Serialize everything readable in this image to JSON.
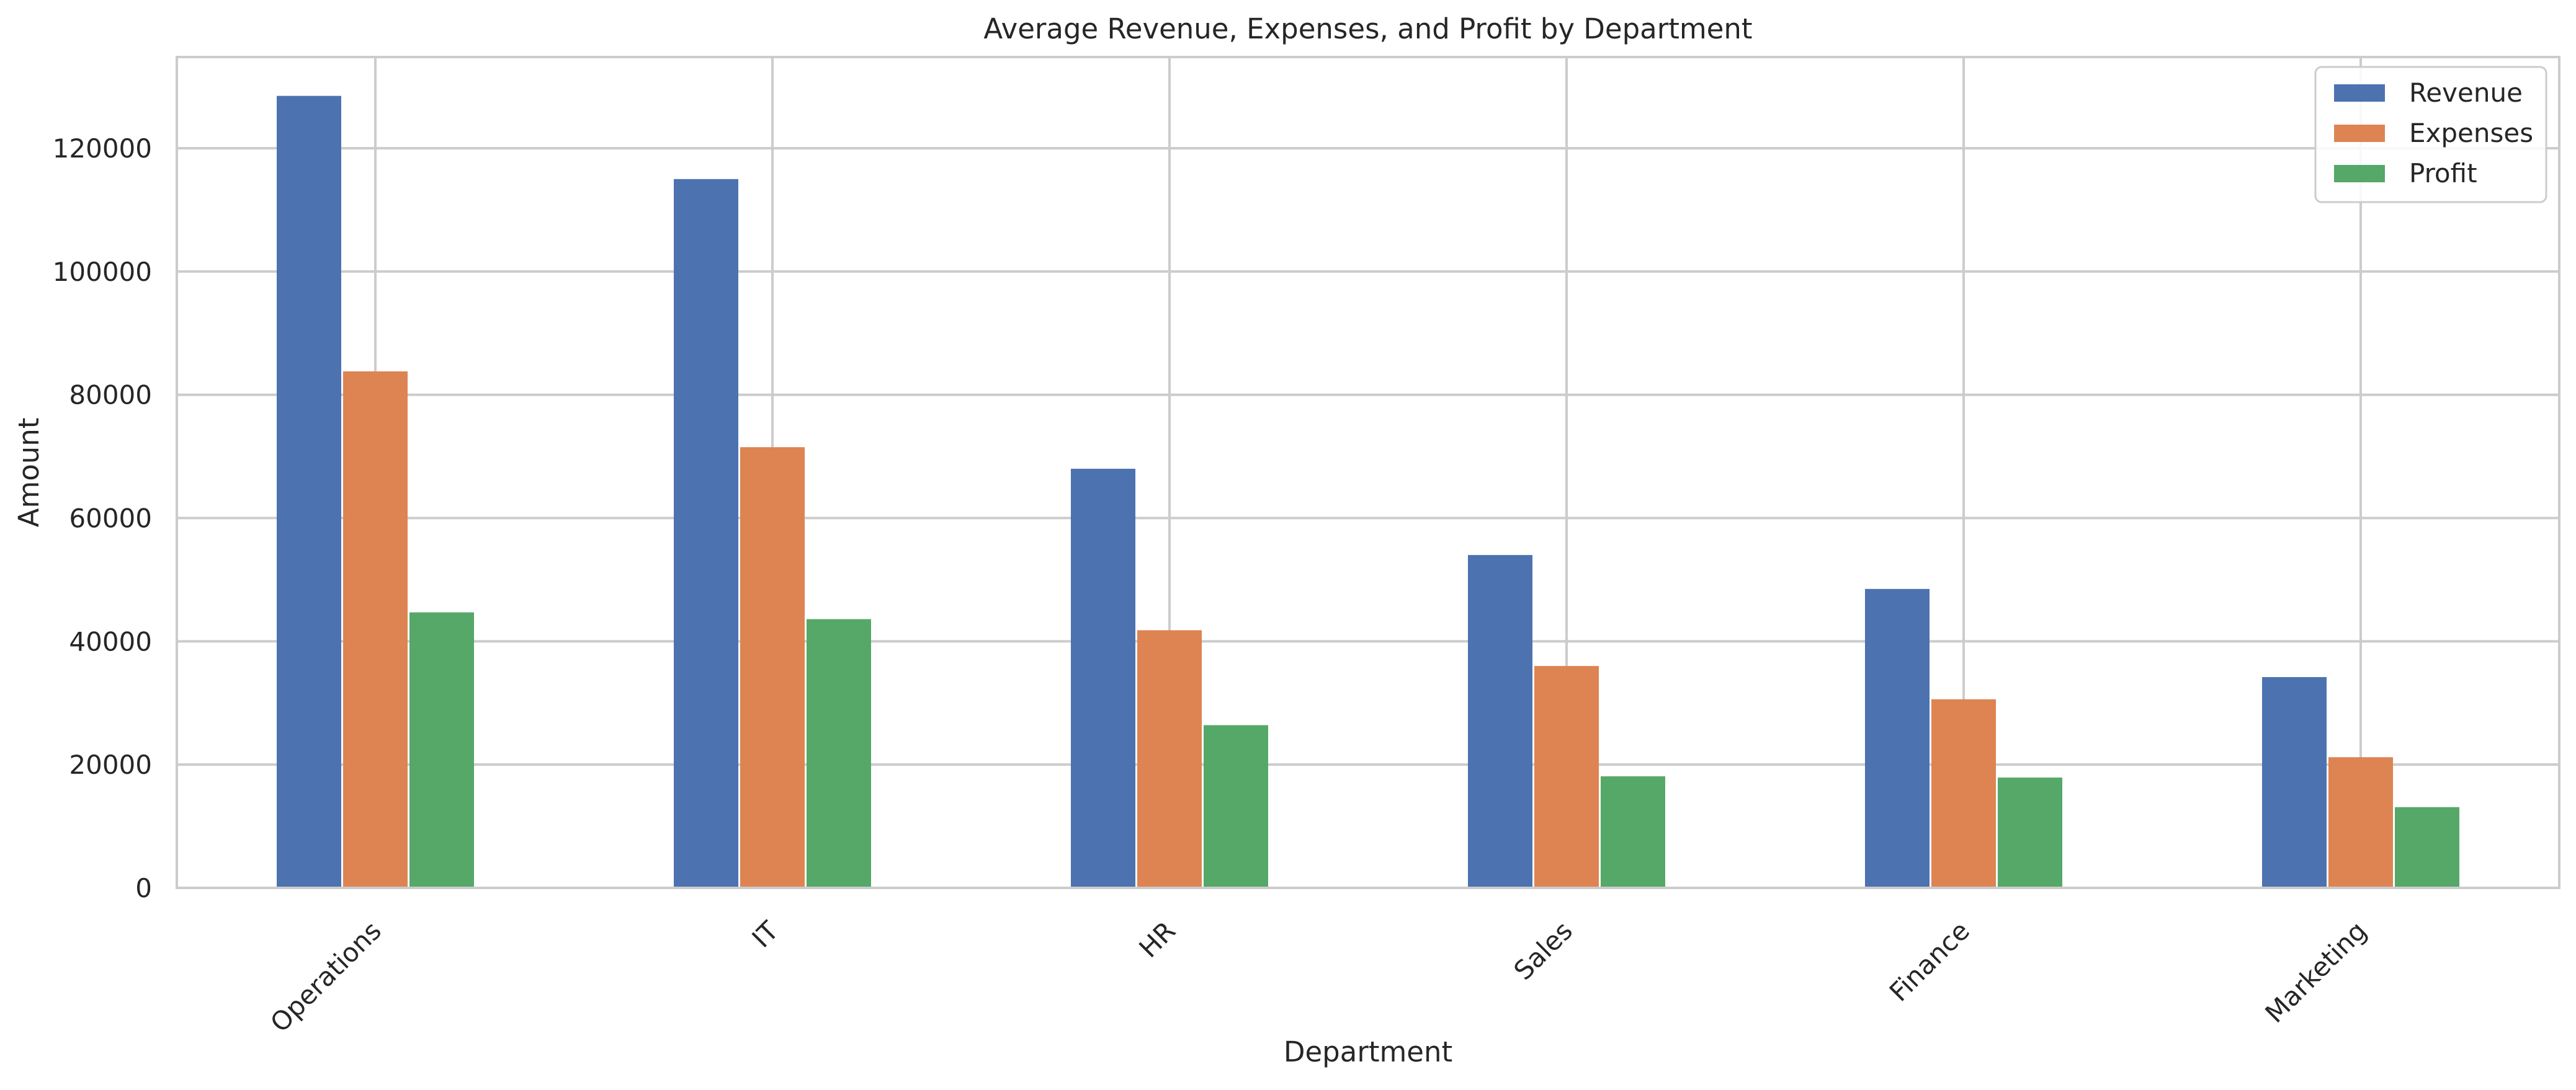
{
  "chart_data": {
    "type": "bar",
    "title": "Average Revenue, Expenses, and Profit by Department",
    "xlabel": "Department",
    "ylabel": "Amount",
    "categories": [
      "Operations",
      "IT",
      "HR",
      "Sales",
      "Finance",
      "Marketing"
    ],
    "series": [
      {
        "name": "Revenue",
        "color": "#4c72b0",
        "values": [
          128500,
          115000,
          68000,
          54000,
          48500,
          34200
        ]
      },
      {
        "name": "Expenses",
        "color": "#dd8452",
        "values": [
          83800,
          71500,
          41800,
          36000,
          30600,
          21200
        ]
      },
      {
        "name": "Profit",
        "color": "#55a868",
        "values": [
          44700,
          43600,
          26400,
          18100,
          17900,
          13100
        ]
      }
    ],
    "ylim": [
      0,
      134800
    ],
    "yticks": [
      0,
      20000,
      40000,
      60000,
      80000,
      100000,
      120000
    ],
    "ytick_labels": [
      "0",
      "20000",
      "40000",
      "60000",
      "80000",
      "100000",
      "120000"
    ],
    "grid": true,
    "legend_position": "top-right",
    "gridline_color": "#cccccc"
  }
}
